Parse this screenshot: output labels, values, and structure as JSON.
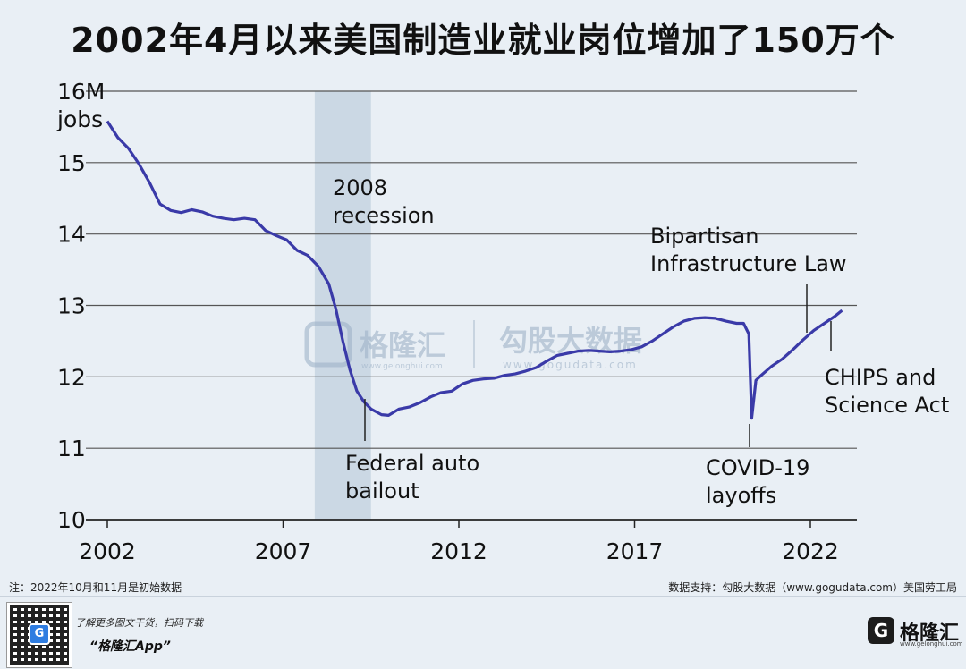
{
  "title": "2002年4月以来美国制造业就业岗位增加了150万个",
  "footnote": "注：2022年10月和11月是初始数据",
  "source": "数据支持：勾股大数据（www.gogudata.com）美国劳工局",
  "promo": {
    "line1": "了解更多图文干货，扫码下载",
    "line2": "“格隆汇App”"
  },
  "brand": {
    "icon_letter": "G",
    "name": "格隆汇",
    "url": "www.gelonghui.com"
  },
  "watermark": {
    "left_name": "格隆汇",
    "left_url": "www.gelonghui.com",
    "right_name": "勾股大数据",
    "right_url": "www.gogudata.com"
  },
  "colors": {
    "line": "#3a3aa8",
    "recession": "#cbd8e4",
    "background": "#e9eff5",
    "grid": "#555555",
    "watermark": "#9fb3c8"
  },
  "chart_data": {
    "type": "line",
    "ylim": [
      10,
      16
    ],
    "xlim": [
      2002,
      2023.6
    ],
    "yticks": [
      10,
      11,
      12,
      13,
      14,
      15,
      16
    ],
    "ytick_labels": [
      "10",
      "11",
      "12",
      "13",
      "14",
      "15",
      "16M"
    ],
    "ylabel": "jobs",
    "xticks": [
      2002,
      2007,
      2012,
      2017,
      2022
    ],
    "xtick_labels": [
      "2002",
      "2007",
      "2012",
      "2017",
      "2022"
    ],
    "grid": "horizontal",
    "shaded_regions": [
      {
        "label": "2008\nrecession",
        "x_range": [
          2007.9,
          2009.5
        ]
      }
    ],
    "series": [
      {
        "x": [
          2002.0,
          2002.3,
          2002.6,
          2002.9,
          2003.2,
          2003.5,
          2003.8,
          2004.1,
          2004.4,
          2004.7,
          2005.0,
          2005.3,
          2005.6,
          2005.9,
          2006.2,
          2006.5,
          2006.8,
          2007.1,
          2007.4,
          2007.7,
          2008.0,
          2008.3,
          2008.5,
          2008.7,
          2008.9,
          2009.1,
          2009.3,
          2009.5,
          2009.8,
          2010.0,
          2010.3,
          2010.6,
          2010.9,
          2011.2,
          2011.5,
          2011.8,
          2012.1,
          2012.4,
          2012.7,
          2013.0,
          2013.3,
          2013.6,
          2013.9,
          2014.2,
          2014.5,
          2014.8,
          2015.1,
          2015.4,
          2015.7,
          2016.0,
          2016.3,
          2016.6,
          2016.9,
          2017.2,
          2017.5,
          2017.8,
          2018.1,
          2018.4,
          2018.7,
          2019.0,
          2019.3,
          2019.6,
          2019.9,
          2020.1,
          2020.25,
          2020.33,
          2020.45,
          2020.6,
          2020.9,
          2021.2,
          2021.5,
          2021.8,
          2022.1,
          2022.4,
          2022.7,
          2022.9
        ],
        "y": [
          15.58,
          15.35,
          15.2,
          14.98,
          14.72,
          14.42,
          14.33,
          14.3,
          14.34,
          14.31,
          14.25,
          14.22,
          14.2,
          14.22,
          14.2,
          14.05,
          13.98,
          13.92,
          13.77,
          13.7,
          13.55,
          13.3,
          12.95,
          12.5,
          12.1,
          11.8,
          11.65,
          11.55,
          11.47,
          11.46,
          11.55,
          11.58,
          11.64,
          11.72,
          11.78,
          11.8,
          11.9,
          11.95,
          11.97,
          11.98,
          12.02,
          12.04,
          12.08,
          12.13,
          12.22,
          12.3,
          12.33,
          12.36,
          12.37,
          12.36,
          12.35,
          12.36,
          12.38,
          12.42,
          12.5,
          12.6,
          12.7,
          12.78,
          12.82,
          12.83,
          12.82,
          12.78,
          12.75,
          12.75,
          12.6,
          11.42,
          11.95,
          12.02,
          12.15,
          12.25,
          12.38,
          12.52,
          12.65,
          12.75,
          12.85,
          12.93
        ]
      }
    ],
    "annotations": [
      {
        "text": "Federal auto\nbailout",
        "x": 2009.4,
        "y": 11.75
      },
      {
        "text": "COVID-19\nlayoffs",
        "x": 2020.33,
        "y": 11.3
      },
      {
        "text": "Bipartisan\nInfrastructure Law",
        "x": 2021.9,
        "y": 12.58
      },
      {
        "text": "CHIPS and\nScience Act",
        "x": 2022.6,
        "y": 12.82
      }
    ]
  }
}
